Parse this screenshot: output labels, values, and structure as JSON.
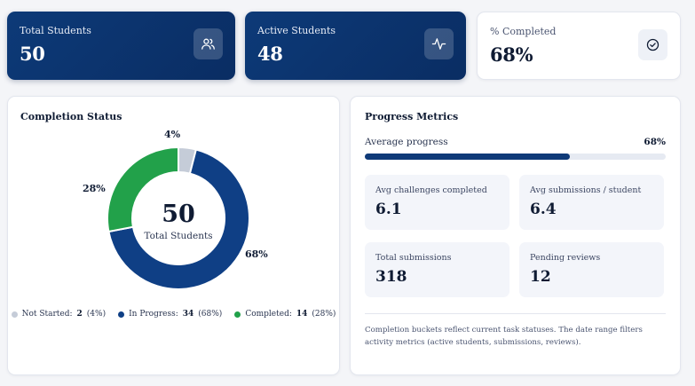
{
  "stats": [
    {
      "label": "Total Students",
      "value": "50",
      "icon": "users-icon"
    },
    {
      "label": "Active Students",
      "value": "48",
      "icon": "activity-icon"
    },
    {
      "label": "% Completed",
      "value": "68%",
      "icon": "check-circle-icon"
    }
  ],
  "completion": {
    "title": "Completion Status",
    "center_value": "50",
    "center_label": "Total Students",
    "segment_labels": {
      "not_started": "4%",
      "completed": "28%",
      "in_progress": "68%"
    },
    "legend": [
      {
        "label": "Not Started:",
        "count": "2",
        "pct": "(4%)"
      },
      {
        "label": "In Progress:",
        "count": "34",
        "pct": "(68%)"
      },
      {
        "label": "Completed:",
        "count": "14",
        "pct": "(28%)"
      }
    ]
  },
  "chart_data": {
    "type": "pie",
    "categories": [
      "Not Started",
      "In Progress",
      "Completed"
    ],
    "values": [
      2,
      34,
      14
    ],
    "percent": [
      4,
      68,
      28
    ],
    "colors": [
      "#c5ccd8",
      "#0f3f85",
      "#22a14a"
    ]
  },
  "metrics": {
    "title": "Progress Metrics",
    "avg_label": "Average progress",
    "avg_value": "68%",
    "avg_fraction": 0.68,
    "boxes": [
      {
        "label": "Avg challenges completed",
        "value": "6.1"
      },
      {
        "label": "Avg submissions / student",
        "value": "6.4"
      },
      {
        "label": "Total submissions",
        "value": "318"
      },
      {
        "label": "Pending reviews",
        "value": "12"
      }
    ],
    "note": "Completion buckets reflect current task statuses. The date range filters activity metrics (active students, submissions, reviews)."
  }
}
